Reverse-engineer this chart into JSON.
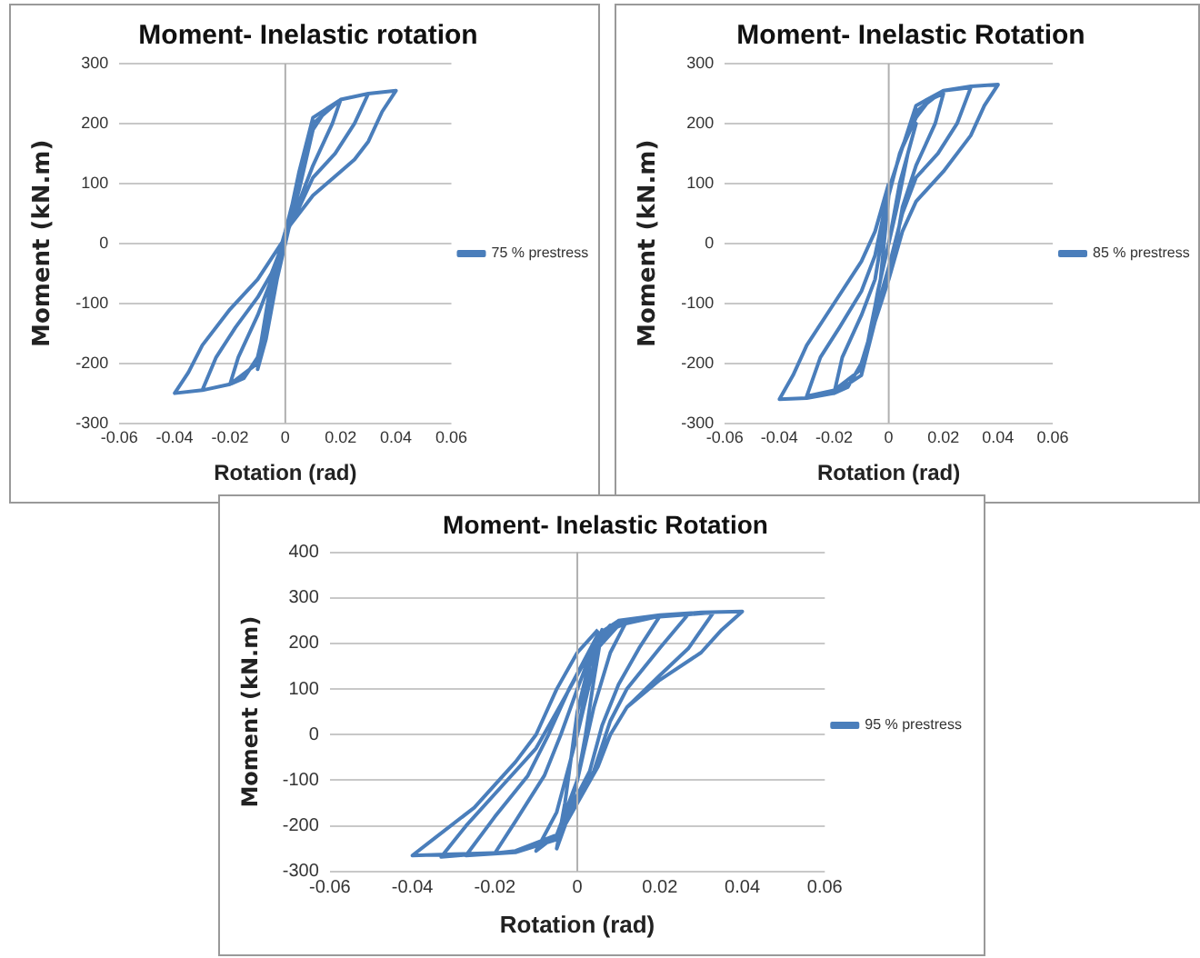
{
  "chart_data": [
    {
      "type": "line",
      "title": "Moment- Inelastic rotation",
      "xlabel": "Rotation (rad)",
      "ylabel": "Moment (kN.m)",
      "xlim": [
        -0.06,
        0.06
      ],
      "xticks": [
        -0.06,
        -0.04,
        -0.02,
        0,
        0.02,
        0.04,
        0.06
      ],
      "ylim": [
        -300,
        300
      ],
      "yticks": [
        -300,
        -200,
        -100,
        0,
        100,
        200,
        300
      ],
      "grid": "y",
      "legend": "right",
      "marker": "none",
      "line_style": "solid",
      "series": [
        {
          "name": "75 % prestress",
          "color": "#4a7ebb",
          "x": [
            0,
            0.005,
            0.01,
            0.007,
            0.003,
            0,
            -0.003,
            -0.007,
            -0.01,
            -0.007,
            -0.003,
            0,
            0.005,
            0.01,
            0.015,
            0.02,
            0.017,
            0.01,
            0.005,
            0,
            -0.005,
            -0.01,
            -0.015,
            -0.02,
            -0.017,
            -0.01,
            -0.005,
            0,
            0.005,
            0.01,
            0.02,
            0.03,
            0.025,
            0.018,
            0.01,
            0.005,
            0,
            -0.005,
            -0.01,
            -0.02,
            -0.03,
            -0.025,
            -0.018,
            -0.01,
            -0.005,
            0,
            0.005,
            0.01,
            0.02,
            0.03,
            0.04,
            0.035,
            0.03,
            0.025,
            0.02,
            0.01,
            0,
            -0.005,
            -0.01,
            -0.02,
            -0.03,
            -0.04,
            -0.035,
            -0.03,
            -0.02,
            -0.01,
            0
          ],
          "values": [
            0,
            120,
            200,
            150,
            60,
            0,
            -60,
            -160,
            -210,
            -150,
            -60,
            10,
            90,
            190,
            225,
            240,
            200,
            130,
            70,
            10,
            -90,
            -190,
            -225,
            -235,
            -190,
            -120,
            -60,
            20,
            110,
            200,
            240,
            250,
            200,
            150,
            110,
            60,
            20,
            -80,
            -200,
            -235,
            -245,
            -190,
            -140,
            -90,
            -50,
            10,
            120,
            210,
            240,
            250,
            255,
            220,
            170,
            140,
            120,
            80,
            20,
            -60,
            -200,
            -235,
            -245,
            -250,
            -215,
            -170,
            -110,
            -60,
            10
          ]
        }
      ]
    },
    {
      "type": "line",
      "title": "Moment- Inelastic Rotation",
      "xlabel": "Rotation (rad)",
      "ylabel": "Moment (kN.m)",
      "xlim": [
        -0.06,
        0.06
      ],
      "xticks": [
        -0.06,
        -0.04,
        -0.02,
        0,
        0.02,
        0.04,
        0.06
      ],
      "ylim": [
        -300,
        300
      ],
      "yticks": [
        -300,
        -200,
        -100,
        0,
        100,
        200,
        300
      ],
      "grid": "y",
      "legend": "right",
      "marker": "none",
      "line_style": "solid",
      "series": [
        {
          "name": "85 % prestress",
          "color": "#4a7ebb",
          "x": [
            0,
            0.004,
            0.01,
            0.007,
            0.003,
            0,
            -0.004,
            -0.008,
            -0.01,
            -0.007,
            -0.003,
            0,
            0.004,
            0.01,
            0.015,
            0.02,
            0.017,
            0.01,
            0.005,
            0.002,
            -0.004,
            -0.01,
            -0.015,
            -0.02,
            -0.017,
            -0.01,
            -0.005,
            0,
            0.004,
            0.01,
            0.02,
            0.03,
            0.025,
            0.018,
            0.01,
            0.005,
            0,
            -0.005,
            -0.01,
            -0.02,
            -0.03,
            -0.025,
            -0.018,
            -0.01,
            -0.005,
            0,
            0.005,
            0.01,
            0.02,
            0.03,
            0.04,
            0.035,
            0.03,
            0.02,
            0.01,
            0.005,
            0,
            -0.005,
            -0.01,
            -0.02,
            -0.03,
            -0.04,
            -0.035,
            -0.03,
            -0.02,
            -0.01,
            -0.005,
            0
          ],
          "values": [
            0,
            100,
            200,
            150,
            60,
            0,
            -80,
            -180,
            -220,
            -150,
            -60,
            80,
            150,
            210,
            240,
            250,
            200,
            130,
            60,
            -20,
            -110,
            -200,
            -240,
            -250,
            -190,
            -120,
            -60,
            80,
            150,
            220,
            255,
            260,
            200,
            150,
            110,
            50,
            -40,
            -120,
            -210,
            -245,
            -255,
            -190,
            -140,
            -80,
            -20,
            90,
            160,
            230,
            255,
            262,
            265,
            230,
            180,
            120,
            70,
            20,
            -60,
            -130,
            -220,
            -250,
            -258,
            -260,
            -220,
            -170,
            -100,
            -30,
            20,
            100
          ]
        }
      ]
    },
    {
      "type": "line",
      "title": "Moment- Inelastic Rotation",
      "xlabel": "Rotation (rad)",
      "ylabel": "Moment (kN.m)",
      "xlim": [
        -0.06,
        0.06
      ],
      "xticks": [
        -0.06,
        -0.04,
        -0.02,
        0,
        0.02,
        0.04,
        0.06
      ],
      "ylim": [
        -300,
        400
      ],
      "yticks": [
        -300,
        -200,
        -100,
        0,
        100,
        200,
        300,
        400
      ],
      "grid": "y",
      "legend": "right",
      "marker": "none",
      "line_style": "solid",
      "series": [
        {
          "name": "95 % prestress",
          "color": "#4a7ebb",
          "x": [
            0,
            0.003,
            0.006,
            0.004,
            0.002,
            0,
            -0.003,
            -0.005,
            -0.003,
            0,
            0.004,
            0.008,
            0.012,
            0.008,
            0.004,
            0,
            -0.005,
            -0.01,
            -0.005,
            0,
            0.005,
            0.01,
            0.02,
            0.015,
            0.01,
            0.006,
            0.003,
            -0.005,
            -0.015,
            -0.02,
            -0.015,
            -0.008,
            -0.004,
            0,
            0.005,
            0.01,
            0.02,
            0.027,
            0.02,
            0.012,
            0.008,
            0.004,
            -0.005,
            -0.015,
            -0.027,
            -0.02,
            -0.012,
            -0.007,
            -0.002,
            0.005,
            0.015,
            0.025,
            0.033,
            0.027,
            0.02,
            0.012,
            0.008,
            0.005,
            -0.005,
            -0.015,
            -0.025,
            -0.033,
            -0.027,
            -0.018,
            -0.01,
            -0.005,
            0.003,
            0.01,
            0.02,
            0.03,
            0.04,
            0.035,
            0.03,
            0.02,
            0.012,
            0.008,
            0.004,
            -0.005,
            -0.015,
            -0.03,
            -0.04,
            -0.035,
            -0.025,
            -0.015,
            -0.01,
            -0.005,
            0,
            0.005
          ],
          "values": [
            0,
            150,
            230,
            120,
            0,
            -100,
            -200,
            -250,
            -150,
            50,
            200,
            240,
            250,
            180,
            60,
            -100,
            -220,
            -255,
            -170,
            0,
            190,
            240,
            260,
            190,
            110,
            20,
            -80,
            -220,
            -255,
            -260,
            -190,
            -90,
            0,
            100,
            220,
            250,
            260,
            265,
            190,
            100,
            30,
            -80,
            -230,
            -258,
            -265,
            -180,
            -90,
            0,
            100,
            220,
            255,
            262,
            268,
            190,
            130,
            60,
            0,
            -70,
            -230,
            -258,
            -262,
            -268,
            -200,
            -110,
            -30,
            50,
            180,
            250,
            262,
            268,
            270,
            230,
            180,
            120,
            60,
            0,
            -80,
            -230,
            -258,
            -262,
            -265,
            -230,
            -160,
            -60,
            0,
            100,
            180,
            230
          ]
        }
      ]
    }
  ]
}
